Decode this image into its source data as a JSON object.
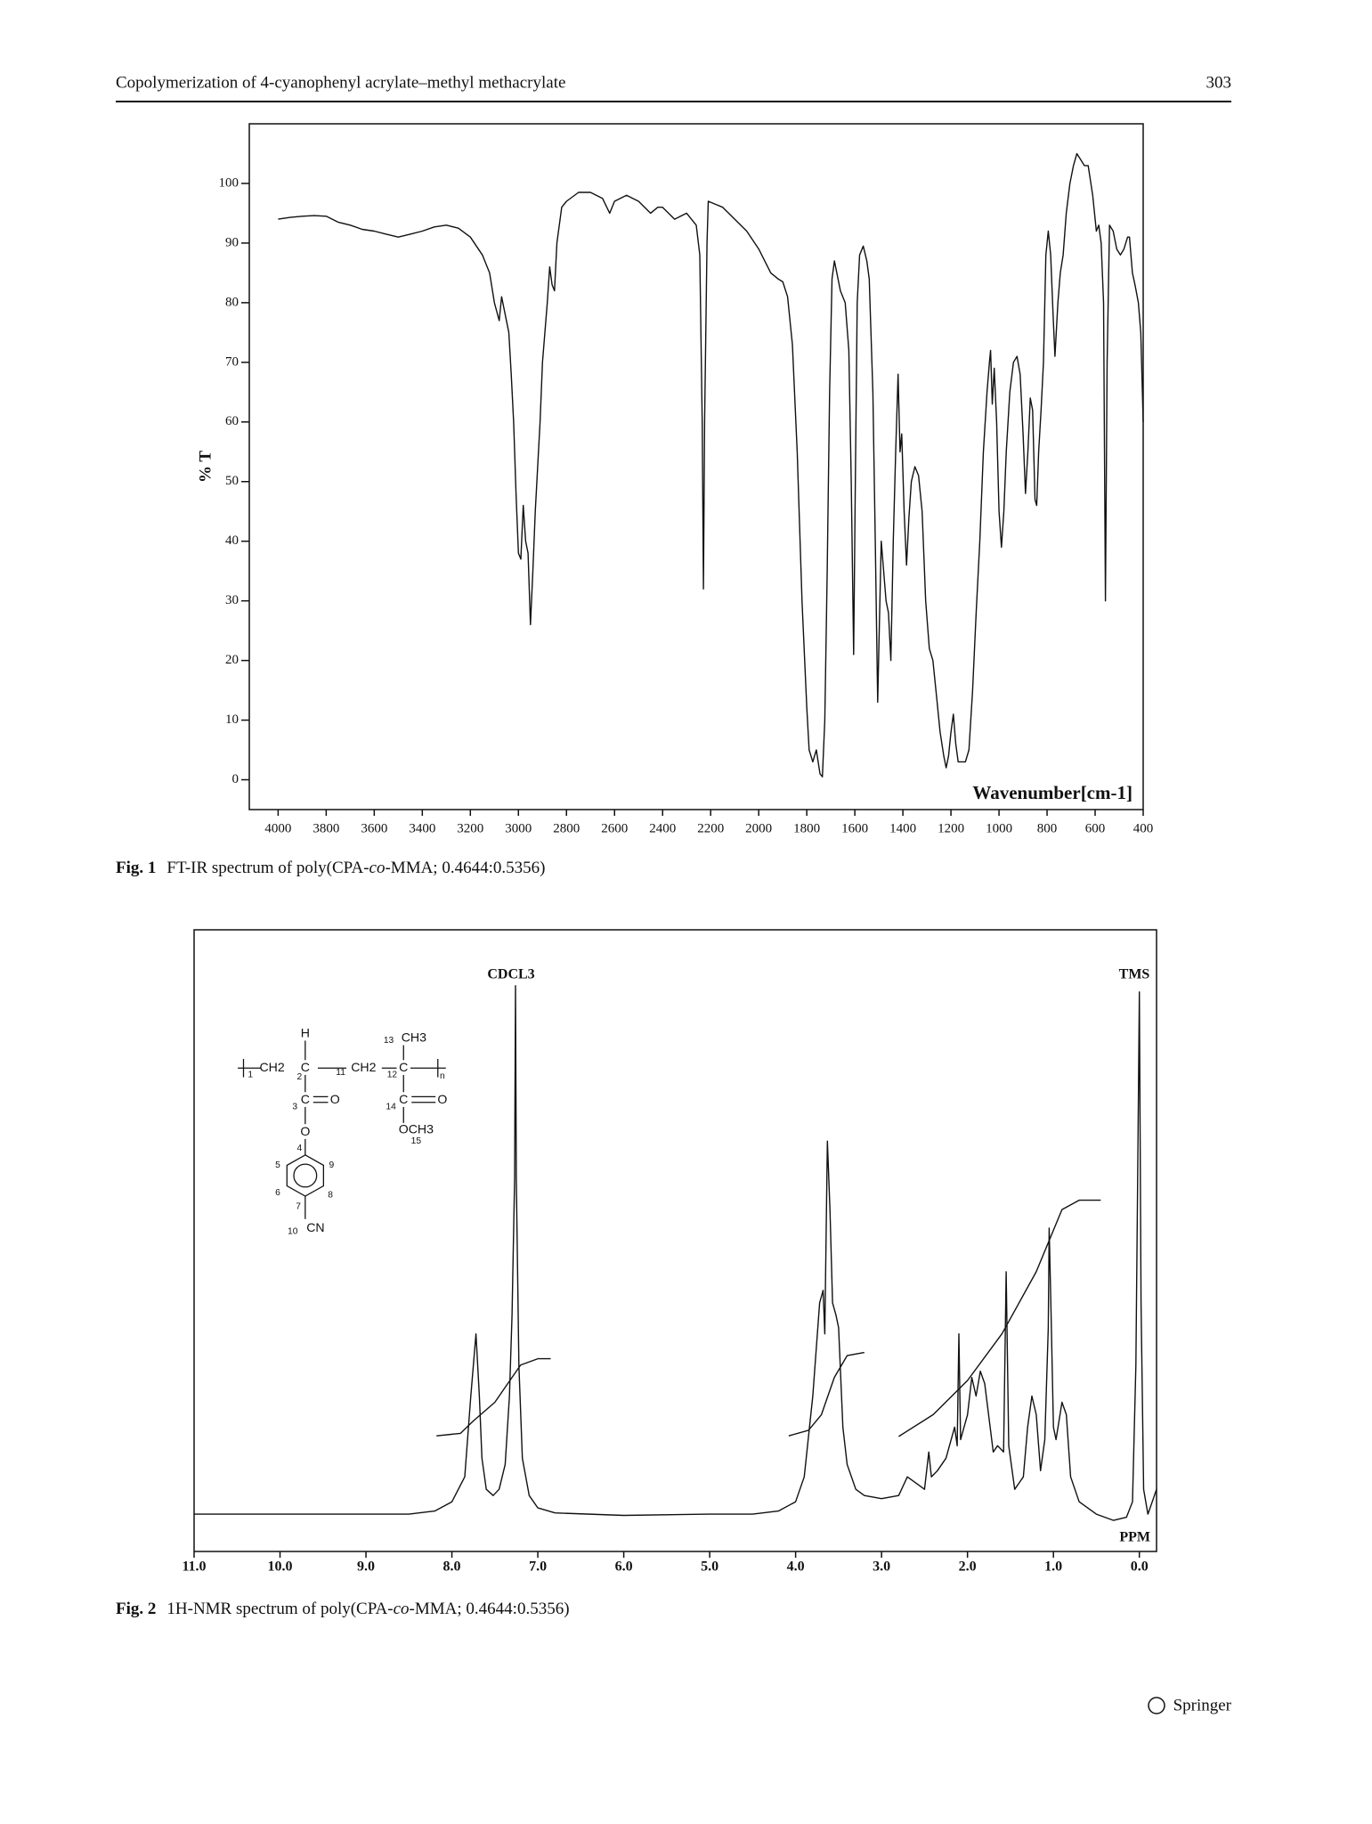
{
  "header": {
    "title": "Copolymerization of 4-cyanophenyl acrylate–methyl methacrylate",
    "page": "303"
  },
  "chart_data": [
    {
      "type": "line",
      "ylabel": "% T",
      "xlabel": "Wavenumber[cm-1]",
      "caption_label": "Fig. 1",
      "caption": [
        "FT-IR spectrum of poly(CPA-",
        "co",
        "-MMA; 0.4644:0.5356)"
      ],
      "color": "#111111",
      "xlim": [
        4120,
        400
      ],
      "ylim": [
        -5,
        110
      ],
      "xticks": [
        4000,
        3800,
        3600,
        3400,
        3200,
        3000,
        2800,
        2600,
        2400,
        2200,
        2000,
        1800,
        1600,
        1400,
        1200,
        1000,
        800,
        600,
        400
      ],
      "yticks": [
        0,
        10,
        20,
        30,
        40,
        50,
        60,
        70,
        80,
        90,
        100
      ],
      "x": [
        4000,
        3950,
        3900,
        3850,
        3800,
        3750,
        3700,
        3650,
        3600,
        3550,
        3500,
        3450,
        3400,
        3350,
        3300,
        3250,
        3200,
        3150,
        3120,
        3100,
        3080,
        3070,
        3060,
        3040,
        3030,
        3020,
        3010,
        3000,
        2990,
        2980,
        2970,
        2960,
        2950,
        2940,
        2930,
        2910,
        2900,
        2880,
        2870,
        2860,
        2850,
        2840,
        2820,
        2800,
        2750,
        2700,
        2650,
        2620,
        2600,
        2550,
        2500,
        2450,
        2420,
        2400,
        2350,
        2300,
        2260,
        2245,
        2235,
        2230,
        2225,
        2215,
        2210,
        2180,
        2150,
        2100,
        2050,
        2000,
        1950,
        1920,
        1900,
        1880,
        1860,
        1840,
        1820,
        1800,
        1790,
        1775,
        1760,
        1745,
        1735,
        1725,
        1715,
        1705,
        1695,
        1685,
        1675,
        1660,
        1640,
        1625,
        1615,
        1605,
        1598,
        1590,
        1580,
        1565,
        1550,
        1540,
        1525,
        1515,
        1505,
        1500,
        1490,
        1480,
        1470,
        1460,
        1450,
        1440,
        1430,
        1420,
        1412,
        1405,
        1395,
        1385,
        1375,
        1365,
        1350,
        1335,
        1320,
        1305,
        1290,
        1275,
        1260,
        1245,
        1230,
        1220,
        1210,
        1200,
        1190,
        1180,
        1170,
        1155,
        1140,
        1125,
        1110,
        1095,
        1080,
        1065,
        1050,
        1040,
        1035,
        1028,
        1020,
        1010,
        1000,
        990,
        980,
        970,
        955,
        940,
        925,
        912,
        900,
        890,
        880,
        870,
        860,
        850,
        843,
        835,
        825,
        815,
        805,
        795,
        785,
        775,
        767,
        755,
        745,
        733,
        720,
        705,
        690,
        676,
        660,
        645,
        629,
        610,
        595,
        585,
        575,
        565,
        557,
        550,
        540,
        525,
        510,
        495,
        480,
        465,
        457,
        445,
        434,
        420,
        410,
        400
      ],
      "values": [
        94,
        94.3,
        94.5,
        94.6,
        94.5,
        93.5,
        93,
        92.3,
        92,
        91.5,
        91,
        91.5,
        92,
        92.7,
        93,
        92.5,
        91,
        88,
        85,
        80,
        77,
        81,
        79,
        75,
        68,
        60,
        48,
        38,
        37,
        46,
        40,
        38,
        26,
        35,
        45,
        60,
        70,
        80,
        86,
        83,
        82,
        90,
        96,
        97,
        98.5,
        98.5,
        97.5,
        95,
        97,
        98,
        97,
        95,
        96,
        96,
        94,
        95,
        93,
        88,
        60,
        32,
        60,
        90,
        97,
        96.5,
        96,
        94,
        92,
        89,
        85,
        84,
        83.5,
        81,
        73,
        55,
        30,
        12,
        5,
        3,
        5,
        1,
        0.5,
        10,
        35,
        65,
        84,
        87,
        85,
        82,
        80,
        72,
        50,
        21,
        50,
        80,
        88,
        89.5,
        87,
        84,
        65,
        40,
        13,
        22,
        40,
        35,
        30,
        28,
        20,
        40,
        55,
        68,
        55,
        58,
        45,
        36,
        44,
        50,
        52.5,
        51,
        45,
        30,
        22,
        20,
        14,
        8,
        4,
        2,
        4,
        8,
        11,
        6,
        3,
        3,
        3,
        5,
        15,
        28,
        40,
        55,
        65,
        70,
        72,
        63,
        69,
        60,
        45,
        39,
        45,
        55,
        65,
        70,
        71,
        68,
        58,
        48,
        55,
        64,
        62,
        47,
        46,
        55,
        62,
        70,
        88,
        92,
        88,
        78,
        71,
        80,
        85,
        88,
        95,
        100,
        103,
        105,
        104,
        103,
        103,
        98,
        92,
        93,
        90,
        80,
        30,
        70,
        93,
        92,
        89,
        88,
        89,
        91,
        91,
        85,
        83,
        80,
        75,
        60
      ]
    },
    {
      "type": "line",
      "xlabel": "PPM",
      "annotations": [
        "CDCL3",
        "TMS"
      ],
      "caption_label": "Fig. 2",
      "caption": [
        "1H-NMR spectrum of poly(CPA-",
        "co",
        "-MMA; 0.4644:0.5356)"
      ],
      "xlim": [
        11,
        -0.2
      ],
      "ylim": [
        0,
        100
      ],
      "xticks": [
        {
          "value": 11,
          "label": "11.0"
        },
        {
          "value": 10,
          "label": "10.0"
        },
        {
          "value": 9,
          "label": "9.0"
        },
        {
          "value": 8,
          "label": "8.0"
        },
        {
          "value": 7,
          "label": "7.0"
        },
        {
          "value": 6,
          "label": "6.0"
        },
        {
          "value": 5,
          "label": "5.0"
        },
        {
          "value": 4,
          "label": "4.0"
        },
        {
          "value": 3,
          "label": "3.0"
        },
        {
          "value": 2,
          "label": "2.0"
        },
        {
          "value": 1,
          "label": "1.0"
        },
        {
          "value": 0,
          "label": "0.0"
        }
      ],
      "series": [
        {
          "color": "#111111",
          "x": [
            11,
            10,
            9,
            8.5,
            8.2,
            8.0,
            7.85,
            7.78,
            7.72,
            7.68,
            7.65,
            7.6,
            7.52,
            7.45,
            7.38,
            7.33,
            7.3,
            7.27,
            7.26,
            7.25,
            7.22,
            7.18,
            7.1,
            7.0,
            6.8,
            6,
            5,
            4.5,
            4.2,
            4.0,
            3.9,
            3.8,
            3.72,
            3.68,
            3.66,
            3.63,
            3.6,
            3.57,
            3.53,
            3.5,
            3.45,
            3.4,
            3.3,
            3.2,
            3.0,
            2.8,
            2.7,
            2.6,
            2.5,
            2.45,
            2.42,
            2.35,
            2.25,
            2.15,
            2.12,
            2.1,
            2.08,
            2.0,
            1.95,
            1.9,
            1.85,
            1.8,
            1.7,
            1.65,
            1.58,
            1.55,
            1.52,
            1.45,
            1.35,
            1.3,
            1.25,
            1.2,
            1.15,
            1.1,
            1.06,
            1.05,
            1.03,
            1.0,
            0.97,
            0.9,
            0.85,
            0.8,
            0.7,
            0.5,
            0.3,
            0.15,
            0.08,
            0.04,
            0.02,
            0,
            -0.02,
            -0.05,
            -0.1,
            -0.15,
            -0.2
          ],
          "values": [
            6,
            6,
            6,
            6,
            6.5,
            8,
            12,
            25,
            35,
            25,
            15,
            10,
            9,
            10,
            14,
            25,
            38,
            60,
            91,
            60,
            30,
            15,
            9,
            7,
            6.2,
            5.8,
            6,
            6,
            6.5,
            8,
            12,
            25,
            40,
            42,
            35,
            66,
            55,
            40,
            38,
            36,
            20,
            14,
            10,
            9,
            8.5,
            9,
            12,
            11,
            10,
            16,
            12,
            13,
            15,
            20,
            17,
            35,
            18,
            22,
            28,
            25,
            29,
            27,
            16,
            17,
            16,
            45,
            17,
            10,
            12,
            20,
            25,
            22,
            13,
            18,
            36,
            52,
            40,
            20,
            18,
            24,
            22,
            12,
            8,
            6,
            5,
            5.5,
            8,
            30,
            60,
            90,
            40,
            10,
            6,
            8,
            10
          ]
        },
        {
          "color": "#111111",
          "x": [
            8.18,
            7.9,
            7.75,
            7.5,
            7.35,
            7.2,
            7.0,
            6.85
          ],
          "values": [
            18.6,
            19,
            21,
            24,
            27,
            30,
            31,
            31
          ]
        },
        {
          "color": "#111111",
          "x": [
            4.08,
            3.85,
            3.7,
            3.55,
            3.4,
            3.2
          ],
          "values": [
            18.6,
            19.5,
            22,
            28,
            31.5,
            32
          ]
        },
        {
          "color": "#111111",
          "x": [
            2.8,
            2.4,
            2.0,
            1.6,
            1.2,
            0.9,
            0.7,
            0.45
          ],
          "values": [
            18.5,
            22,
            27.5,
            35,
            45,
            55,
            56.5,
            56.5
          ]
        }
      ]
    }
  ],
  "structure": {
    "labels": [
      "H",
      "1",
      "CH2",
      "2",
      "C",
      "11",
      "CH2",
      "12",
      "C",
      "n",
      "13",
      "CH3",
      "3",
      "C",
      "O",
      "14",
      "C",
      "O",
      "O",
      "OCH3",
      "15",
      "4",
      "5",
      "9",
      "6",
      "8",
      "7",
      "10",
      "CN"
    ]
  },
  "footer": "Springer"
}
